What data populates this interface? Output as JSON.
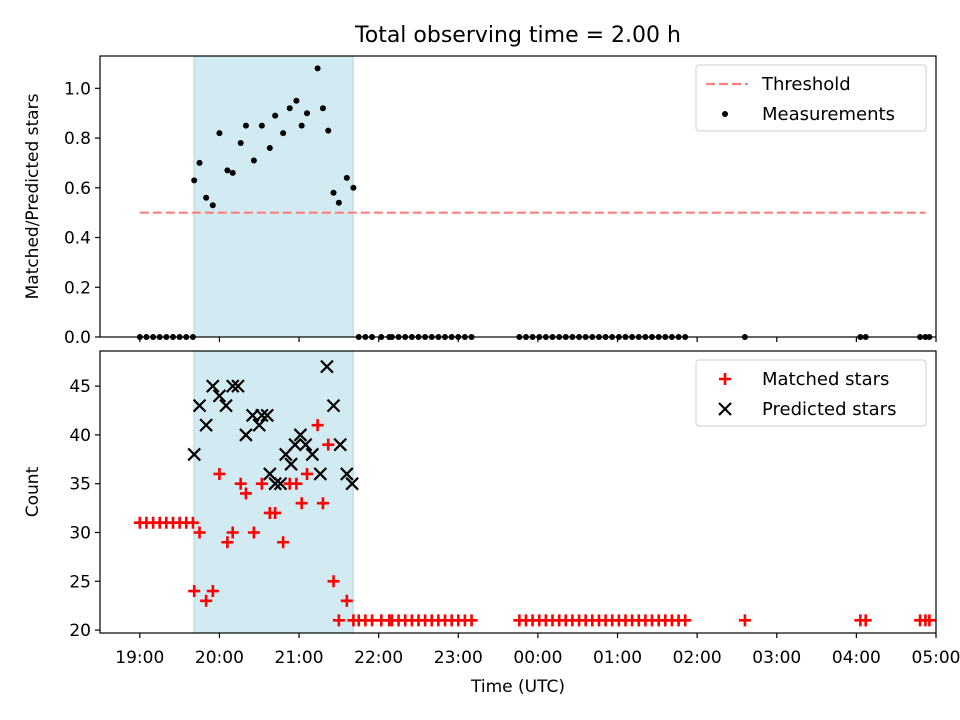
{
  "figure": {
    "title": "Total observing time = 2.00 h"
  },
  "chart_data": [
    {
      "type": "scatter",
      "ylabel": "Matched/Predicted stars",
      "xlabel": "",
      "ylim": [
        0.0,
        1.13
      ],
      "yticks": [
        "0.0",
        "0.2",
        "0.4",
        "0.6",
        "0.8",
        "1.0"
      ],
      "xlim_hours": [
        18.5,
        29.0
      ],
      "shaded_span_hours": [
        19.68,
        21.68
      ],
      "shade_color": "#add8e6",
      "threshold": {
        "label": "Threshold",
        "y": 0.5,
        "x_hours": [
          19.0,
          28.87
        ],
        "color": "#ff7f7f",
        "style": "dashed"
      },
      "legend": {
        "position": "upper right",
        "entries": [
          "Threshold",
          "Measurements"
        ]
      },
      "series": [
        {
          "name": "Measurements",
          "color": "#000000",
          "marker": "dot",
          "x_hours": [
            19.0,
            19.083,
            19.167,
            19.25,
            19.333,
            19.417,
            19.5,
            19.583,
            19.667,
            19.683,
            19.75,
            19.833,
            19.917,
            20.0,
            20.1,
            20.167,
            20.267,
            20.333,
            20.433,
            20.533,
            20.633,
            20.7,
            20.8,
            20.883,
            20.967,
            21.033,
            21.1,
            21.233,
            21.3,
            21.367,
            21.433,
            21.5,
            21.6,
            21.683,
            21.75,
            21.833,
            21.917,
            22.033,
            22.133,
            22.167,
            22.25,
            22.333,
            22.417,
            22.5,
            22.583,
            22.667,
            22.75,
            22.833,
            22.917,
            23.0,
            23.083,
            23.167,
            23.767,
            23.85,
            23.933,
            24.017,
            24.1,
            24.183,
            24.267,
            24.35,
            24.433,
            24.517,
            24.6,
            24.683,
            24.767,
            24.85,
            24.933,
            25.017,
            25.1,
            25.183,
            25.267,
            25.35,
            25.433,
            25.517,
            25.6,
            25.683,
            25.767,
            25.85,
            26.6,
            28.05,
            28.117,
            28.8,
            28.867,
            28.917
          ],
          "y": [
            0,
            0,
            0,
            0,
            0,
            0,
            0,
            0,
            0,
            0.63,
            0.7,
            0.56,
            0.53,
            0.82,
            0.67,
            0.66,
            0.78,
            0.85,
            0.71,
            0.85,
            0.76,
            0.89,
            0.82,
            0.92,
            0.95,
            0.85,
            0.9,
            1.08,
            0.92,
            0.83,
            0.58,
            0.54,
            0.64,
            0.6,
            0,
            0,
            0,
            0,
            0,
            0,
            0,
            0,
            0,
            0,
            0,
            0,
            0,
            0,
            0,
            0,
            0,
            0,
            0,
            0,
            0,
            0,
            0,
            0,
            0,
            0,
            0,
            0,
            0,
            0,
            0,
            0,
            0,
            0,
            0,
            0,
            0,
            0,
            0,
            0,
            0,
            0,
            0,
            0,
            0,
            0,
            0,
            0,
            0,
            0
          ]
        }
      ]
    },
    {
      "type": "scatter",
      "ylabel": "Count",
      "xlabel": "Time (UTC)",
      "ylim": [
        19.7,
        48.6
      ],
      "yticks": [
        "20",
        "25",
        "30",
        "35",
        "40",
        "45"
      ],
      "xlim_hours": [
        18.5,
        29.0
      ],
      "xticks": [
        "19:00",
        "20:00",
        "21:00",
        "22:00",
        "23:00",
        "00:00",
        "01:00",
        "02:00",
        "03:00",
        "04:00",
        "05:00"
      ],
      "shaded_span_hours": [
        19.68,
        21.68
      ],
      "shade_color": "#add8e6",
      "legend": {
        "position": "upper right",
        "entries": [
          "Matched stars",
          "Predicted stars"
        ]
      },
      "series": [
        {
          "name": "Matched stars",
          "color": "#ff0000",
          "marker": "plus",
          "x_hours": [
            19.0,
            19.083,
            19.167,
            19.25,
            19.333,
            19.417,
            19.5,
            19.583,
            19.667,
            19.683,
            19.75,
            19.833,
            19.917,
            20.0,
            20.1,
            20.167,
            20.267,
            20.333,
            20.433,
            20.533,
            20.633,
            20.7,
            20.8,
            20.883,
            20.967,
            21.033,
            21.1,
            21.233,
            21.3,
            21.367,
            21.433,
            21.5,
            21.6,
            21.683,
            21.75,
            21.833,
            21.917,
            22.033,
            22.133,
            22.167,
            22.25,
            22.333,
            22.417,
            22.5,
            22.583,
            22.667,
            22.75,
            22.833,
            22.917,
            23.0,
            23.083,
            23.167,
            23.767,
            23.85,
            23.933,
            24.017,
            24.1,
            24.183,
            24.267,
            24.35,
            24.433,
            24.517,
            24.6,
            24.683,
            24.767,
            24.85,
            24.933,
            25.017,
            25.1,
            25.183,
            25.267,
            25.35,
            25.433,
            25.517,
            25.6,
            25.683,
            25.767,
            25.85,
            26.6,
            28.05,
            28.117,
            28.8,
            28.867,
            28.917
          ],
          "y": [
            31,
            31,
            31,
            31,
            31,
            31,
            31,
            31,
            31,
            24,
            30,
            23,
            24,
            36,
            29,
            30,
            35,
            34,
            30,
            35,
            32,
            32,
            29,
            35,
            35,
            33,
            36,
            41,
            33,
            39,
            25,
            21,
            23,
            21,
            21,
            21,
            21,
            21,
            21,
            21,
            21,
            21,
            21,
            21,
            21,
            21,
            21,
            21,
            21,
            21,
            21,
            21,
            21,
            21,
            21,
            21,
            21,
            21,
            21,
            21,
            21,
            21,
            21,
            21,
            21,
            21,
            21,
            21,
            21,
            21,
            21,
            21,
            21,
            21,
            21,
            21,
            21,
            21,
            21,
            21,
            21,
            21,
            21,
            21
          ]
        },
        {
          "name": "Predicted stars",
          "color": "#000000",
          "marker": "x",
          "x_hours": [
            19.683,
            19.75,
            19.833,
            19.917,
            20.0,
            20.083,
            20.167,
            20.233,
            20.333,
            20.417,
            20.5,
            20.533,
            20.6,
            20.633,
            20.7,
            20.767,
            20.833,
            20.9,
            20.95,
            21.017,
            21.083,
            21.167,
            21.267,
            21.35,
            21.433,
            21.517,
            21.6,
            21.667
          ],
          "y": [
            38,
            43,
            41,
            45,
            44,
            43,
            45,
            45,
            40,
            42,
            41,
            42,
            42,
            36,
            35,
            35,
            38,
            37,
            39,
            40,
            39,
            38,
            36,
            47,
            43,
            39,
            36,
            35
          ]
        }
      ]
    }
  ]
}
